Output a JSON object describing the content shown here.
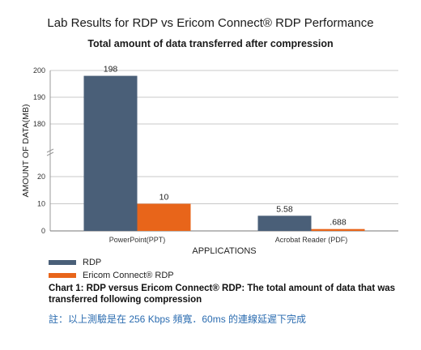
{
  "chart_data": {
    "type": "bar",
    "title": "Lab Results for RDP vs Ericom Connect® RDP Performance",
    "subtitle": "Total amount of data transferred after compression",
    "xlabel": "APPLICATIONS",
    "ylabel": "AMOUNT OF DATA(MB)",
    "categories": [
      "PowerPoint(PPT)",
      "Acrobat Reader (PDF)"
    ],
    "series": [
      {
        "name": "RDP",
        "values": [
          198,
          5.58
        ],
        "labels": [
          "198",
          "5.58"
        ],
        "color": "#4a5f78"
      },
      {
        "name": "Ericom Connect® RDP",
        "values": [
          10,
          0.688
        ],
        "labels": [
          "10",
          ".688"
        ],
        "color": "#e8651a"
      }
    ],
    "y_ticks": [
      0,
      10,
      20,
      180,
      190,
      200
    ],
    "y_axis_break": [
      20,
      180
    ],
    "ylim": [
      0,
      200
    ],
    "grid": true,
    "legend_position": "bottom-left"
  },
  "caption": "Chart 1: RDP versus Ericom Connect® RDP: The total amount of data that was transferred following compression",
  "note": "註：以上測驗是在 256 Kbps 頻寬．60ms 的連線延遲下完成"
}
